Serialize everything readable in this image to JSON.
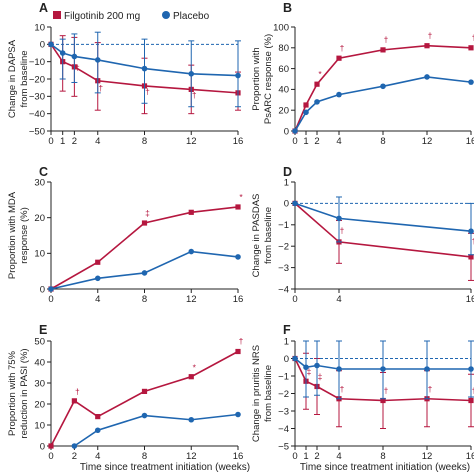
{
  "legend": [
    {
      "name": "Filgotinib 200 mg",
      "color": "#b5173f",
      "marker": "square"
    },
    {
      "name": "Placebo",
      "color": "#1f66b0",
      "marker": "circle"
    }
  ],
  "x_axis_label": "Time since treatment initiation (weeks)",
  "chart_data": [
    {
      "panel": "A",
      "type": "line",
      "ylabel": [
        "Change in DAPSA",
        "from baseline"
      ],
      "ylim": [
        -50,
        10
      ],
      "yticks": [
        10,
        0,
        -10,
        -20,
        -30,
        -40,
        -50
      ],
      "xticks": [
        0,
        1,
        2,
        4,
        8,
        12,
        16
      ],
      "reference_line": 0,
      "series": [
        {
          "name": "Filgotinib 200 mg",
          "x": [
            0,
            1,
            2,
            4,
            8,
            12,
            16
          ],
          "y": [
            0,
            -10,
            -13,
            -21,
            -24,
            -26,
            -28
          ],
          "err_low": [
            0,
            -27,
            -30,
            -38,
            -40,
            -40,
            -38
          ],
          "err_high": [
            0,
            5,
            4,
            1,
            -8,
            -12,
            -16
          ]
        },
        {
          "name": "Placebo",
          "x": [
            0,
            1,
            2,
            4,
            8,
            12,
            16
          ],
          "y": [
            0,
            -5,
            -7,
            -9,
            -14,
            -17,
            -18
          ],
          "err_low": [
            0,
            -20,
            -22,
            -28,
            -34,
            -36,
            -36
          ],
          "err_high": [
            0,
            3,
            6,
            7,
            3,
            2,
            2
          ]
        }
      ],
      "annotations": [
        {
          "text": "†",
          "x": 2,
          "y": -15
        },
        {
          "text": "†",
          "x": 4,
          "y": -27
        },
        {
          "text": "†",
          "x": 8,
          "y": -29
        },
        {
          "text": "†",
          "x": 12,
          "y": -31
        }
      ]
    },
    {
      "panel": "B",
      "type": "line",
      "ylabel": [
        "Proportion with",
        "PsARC response (%)"
      ],
      "ylim": [
        0,
        100
      ],
      "yticks": [
        100,
        80,
        60,
        40,
        20,
        0
      ],
      "xticks": [
        0,
        1,
        2,
        4,
        8,
        12,
        16
      ],
      "series": [
        {
          "name": "Filgotinib 200 mg",
          "x": [
            0,
            1,
            2,
            4,
            8,
            12,
            16
          ],
          "y": [
            0,
            25,
            45,
            70,
            78,
            82,
            80
          ]
        },
        {
          "name": "Placebo",
          "x": [
            0,
            1,
            2,
            4,
            8,
            12,
            16
          ],
          "y": [
            0,
            18,
            28,
            35,
            43,
            52,
            47
          ]
        }
      ],
      "annotations": [
        {
          "text": "*",
          "x": 2,
          "y": 52
        },
        {
          "text": "†",
          "x": 4,
          "y": 77
        },
        {
          "text": "†",
          "x": 8,
          "y": 85
        },
        {
          "text": "†",
          "x": 12,
          "y": 89
        },
        {
          "text": "†",
          "x": 16,
          "y": 87
        }
      ]
    },
    {
      "panel": "C",
      "type": "line",
      "ylabel": [
        "Proportion with MDA",
        "response (%)"
      ],
      "ylim": [
        0,
        30
      ],
      "yticks": [
        30,
        20,
        10,
        0
      ],
      "xticks": [
        0,
        4,
        8,
        12,
        16
      ],
      "series": [
        {
          "name": "Filgotinib 200 mg",
          "x": [
            0,
            4,
            8,
            12,
            16
          ],
          "y": [
            0,
            7.5,
            18.5,
            21.5,
            23
          ]
        },
        {
          "name": "Placebo",
          "x": [
            0,
            4,
            8,
            12,
            16
          ],
          "y": [
            0,
            3,
            4.5,
            10.5,
            9
          ]
        }
      ],
      "annotations": [
        {
          "text": "‡",
          "x": 8,
          "y": 20.5
        },
        {
          "text": "*",
          "x": 16,
          "y": 25
        }
      ]
    },
    {
      "panel": "D",
      "type": "line",
      "ylabel": [
        "Change in PASDAS",
        "from baseline"
      ],
      "ylim": [
        -4,
        1
      ],
      "yticks": [
        1,
        0,
        -1,
        -2,
        -3,
        -4
      ],
      "xticks": [
        0,
        4,
        16
      ],
      "reference_line": 0,
      "series": [
        {
          "name": "Filgotinib 200 mg",
          "x": [
            0,
            4,
            16
          ],
          "y": [
            0,
            -1.8,
            -2.5
          ],
          "err_low": [
            0,
            -2.8,
            -3.6
          ],
          "err_high": [
            0,
            -0.8,
            -1.4
          ]
        },
        {
          "name": "Placebo",
          "x": [
            0,
            4,
            16
          ],
          "y": [
            0,
            -0.7,
            -1.3
          ],
          "err_low": [
            0,
            -1.8,
            -2.4
          ],
          "err_high": [
            0,
            0.3,
            0
          ]
        }
      ],
      "annotations": [
        {
          "text": "†",
          "x": 4,
          "y": -1.4
        },
        {
          "text": "†",
          "x": 16,
          "y": -1.9
        }
      ]
    },
    {
      "panel": "E",
      "type": "line",
      "ylabel": [
        "Proportion with 75%",
        "reduction in PASI (%)"
      ],
      "ylim": [
        0,
        50
      ],
      "yticks": [
        50,
        40,
        30,
        20,
        10,
        0
      ],
      "xticks": [
        0,
        2,
        4,
        8,
        12,
        16
      ],
      "series": [
        {
          "name": "Filgotinib 200 mg",
          "x": [
            0,
            2,
            4,
            8,
            12,
            16
          ],
          "y": [
            0,
            21.5,
            14,
            26,
            33,
            45
          ]
        },
        {
          "name": "Placebo",
          "x": [
            2,
            4,
            8,
            12,
            16
          ],
          "y": [
            0,
            7.5,
            14.5,
            12.5,
            15
          ]
        }
      ],
      "annotations": [
        {
          "text": "†",
          "x": 2,
          "y": 24.5
        },
        {
          "text": "*",
          "x": 12,
          "y": 36
        },
        {
          "text": "†",
          "x": 16,
          "y": 48.5
        }
      ]
    },
    {
      "panel": "F",
      "type": "line",
      "ylabel": [
        "Change in pruritis NRS",
        "from baseline"
      ],
      "ylim": [
        -5,
        1
      ],
      "yticks": [
        1,
        0,
        -1,
        -2,
        -3,
        -4,
        -5
      ],
      "xticks": [
        0,
        1,
        2,
        4,
        8,
        12,
        16
      ],
      "reference_line": 0,
      "series": [
        {
          "name": "Filgotinib 200 mg",
          "x": [
            0,
            1,
            2,
            4,
            8,
            12,
            16
          ],
          "y": [
            0,
            -1.3,
            -1.6,
            -2.3,
            -2.4,
            -2.3,
            -2.4
          ],
          "err_low": [
            0,
            -2.9,
            -3.2,
            -3.9,
            -4.0,
            -3.9,
            -3.9
          ],
          "err_high": [
            0,
            0.3,
            0,
            -0.7,
            -0.8,
            -0.7,
            -0.9
          ]
        },
        {
          "name": "Placebo",
          "x": [
            0,
            1,
            2,
            4,
            8,
            12,
            16
          ],
          "y": [
            0,
            -0.5,
            -0.4,
            -0.6,
            -0.6,
            -0.6,
            -0.6
          ],
          "err_low": [
            0,
            -2.2,
            -2.1,
            -2.3,
            -2.3,
            -2.3,
            -2.2
          ],
          "err_high": [
            0,
            1,
            1,
            1,
            1,
            1,
            1
          ]
        }
      ],
      "annotations": [
        {
          "text": "‡",
          "x": 1,
          "y": -0.9
        },
        {
          "text": "‡",
          "x": 2,
          "y": -1.2
        },
        {
          "text": "†",
          "x": 4,
          "y": -1.9
        },
        {
          "text": "†",
          "x": 8,
          "y": -2.0
        },
        {
          "text": "†",
          "x": 12,
          "y": -1.9
        },
        {
          "text": "†",
          "x": 16,
          "y": -2.0
        }
      ]
    }
  ]
}
